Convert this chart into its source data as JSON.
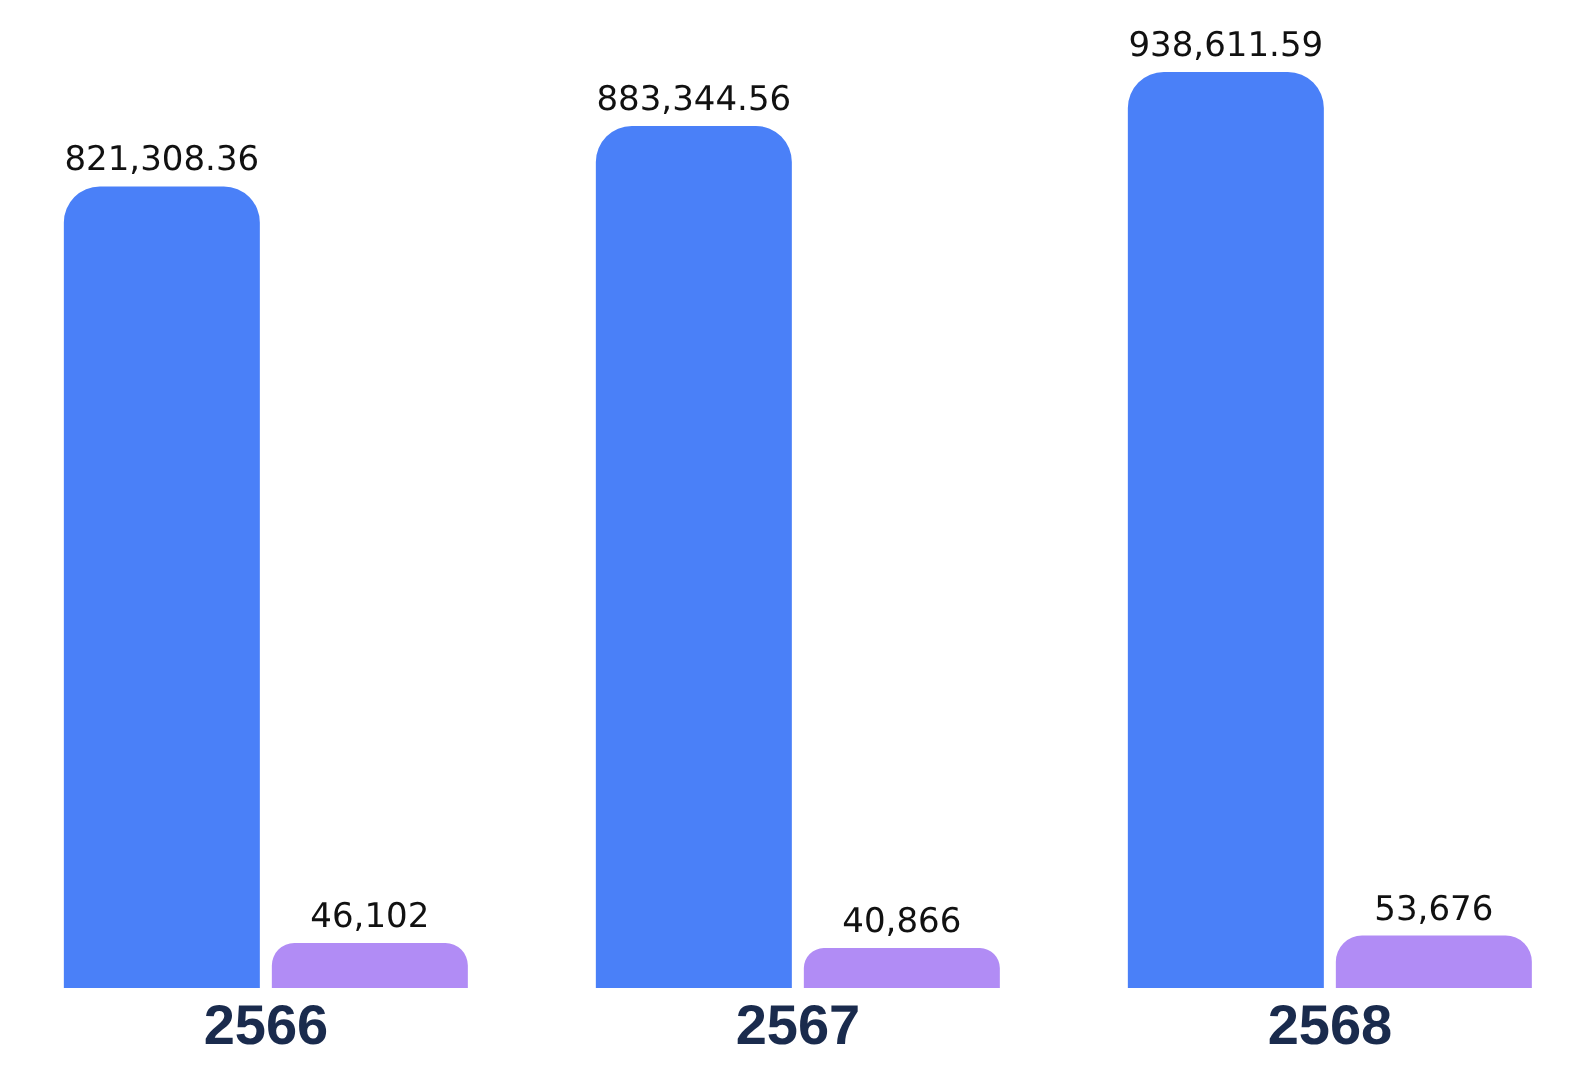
{
  "chart_data": {
    "type": "bar",
    "categories": [
      "2566",
      "2567",
      "2568"
    ],
    "series": [
      {
        "color": "#4a80f8",
        "values": [
          821308.36,
          883344.56,
          938611.59
        ],
        "value_labels": [
          "821,308.36",
          "883,344.56",
          "938,611.59"
        ]
      },
      {
        "color": "#b18cf5",
        "values": [
          46102,
          40866,
          53676
        ],
        "value_labels": [
          "46,102",
          "40,866",
          "53,676"
        ]
      }
    ],
    "grid": false,
    "legend": false
  }
}
